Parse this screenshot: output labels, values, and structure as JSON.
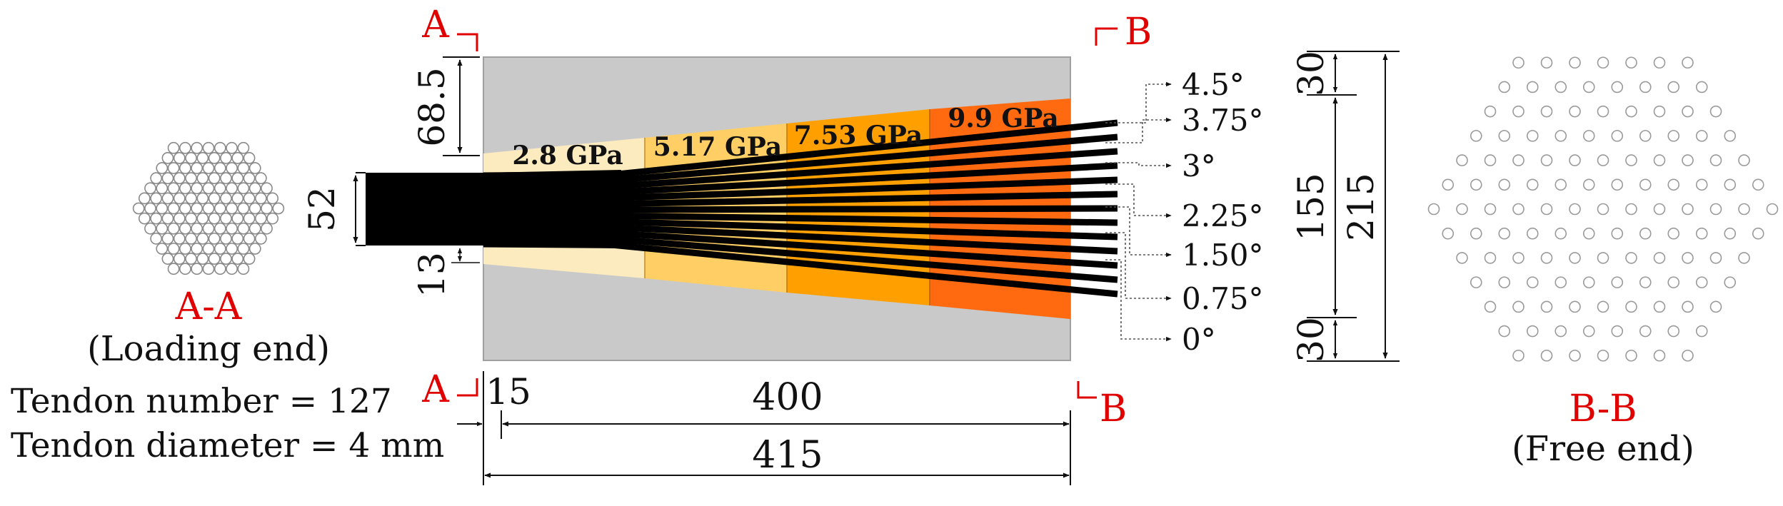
{
  "sections": {
    "left": {
      "label": "A-A",
      "subtitle": "(Loading end)",
      "tendon_number": "Tendon number = 127",
      "tendon_diameter": "Tendon diameter = 4 mm",
      "tendon_count": 127
    },
    "right": {
      "label": "B-B",
      "subtitle": "(Free end)",
      "tendon_count": 127
    }
  },
  "cut_marks": {
    "a": "A",
    "b": "B"
  },
  "zones": [
    {
      "label": "2.8 GPa",
      "color": "#fdebc0"
    },
    {
      "label": "5.17 GPa",
      "color": "#ffcf66"
    },
    {
      "label": "7.53 GPa",
      "color": "#ffa000"
    },
    {
      "label": "9.9 GPa",
      "color": "#ff6a10"
    }
  ],
  "background_color": "#c9c9c9",
  "angles": [
    "4.5°",
    "3.75°",
    "3°",
    "2.25°",
    "1.50°",
    "0.75°",
    "0°"
  ],
  "dimensions": {
    "top_gap": "68.5",
    "bundle_height": "52",
    "bottom_gap": "13",
    "inset": "15",
    "taper_length": "400",
    "total_length": "415",
    "right_top": "30",
    "right_middle": "155",
    "right_bottom": "30",
    "right_total": "215"
  }
}
